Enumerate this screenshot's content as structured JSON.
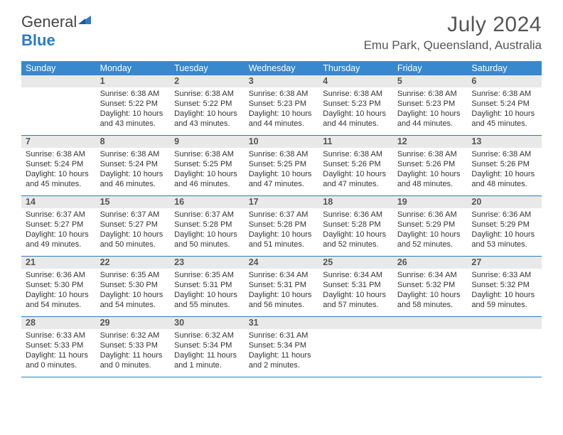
{
  "logo": {
    "text1": "General",
    "text2": "Blue"
  },
  "title": {
    "month": "July 2024",
    "location": "Emu Park, Queensland, Australia"
  },
  "colors": {
    "header_bg": "#3888ce",
    "header_text": "#ffffff",
    "daynum_bg": "#e9e9e9",
    "week_border": "#2d7bc6",
    "body_text": "#333333",
    "logo_blue": "#2d7bc6",
    "logo_gray": "#444444"
  },
  "dow": [
    "Sunday",
    "Monday",
    "Tuesday",
    "Wednesday",
    "Thursday",
    "Friday",
    "Saturday"
  ],
  "weeks": [
    [
      {
        "n": "",
        "sr": "",
        "ss": "",
        "dl": ""
      },
      {
        "n": "1",
        "sr": "Sunrise: 6:38 AM",
        "ss": "Sunset: 5:22 PM",
        "dl": "Daylight: 10 hours and 43 minutes."
      },
      {
        "n": "2",
        "sr": "Sunrise: 6:38 AM",
        "ss": "Sunset: 5:22 PM",
        "dl": "Daylight: 10 hours and 43 minutes."
      },
      {
        "n": "3",
        "sr": "Sunrise: 6:38 AM",
        "ss": "Sunset: 5:23 PM",
        "dl": "Daylight: 10 hours and 44 minutes."
      },
      {
        "n": "4",
        "sr": "Sunrise: 6:38 AM",
        "ss": "Sunset: 5:23 PM",
        "dl": "Daylight: 10 hours and 44 minutes."
      },
      {
        "n": "5",
        "sr": "Sunrise: 6:38 AM",
        "ss": "Sunset: 5:23 PM",
        "dl": "Daylight: 10 hours and 44 minutes."
      },
      {
        "n": "6",
        "sr": "Sunrise: 6:38 AM",
        "ss": "Sunset: 5:24 PM",
        "dl": "Daylight: 10 hours and 45 minutes."
      }
    ],
    [
      {
        "n": "7",
        "sr": "Sunrise: 6:38 AM",
        "ss": "Sunset: 5:24 PM",
        "dl": "Daylight: 10 hours and 45 minutes."
      },
      {
        "n": "8",
        "sr": "Sunrise: 6:38 AM",
        "ss": "Sunset: 5:24 PM",
        "dl": "Daylight: 10 hours and 46 minutes."
      },
      {
        "n": "9",
        "sr": "Sunrise: 6:38 AM",
        "ss": "Sunset: 5:25 PM",
        "dl": "Daylight: 10 hours and 46 minutes."
      },
      {
        "n": "10",
        "sr": "Sunrise: 6:38 AM",
        "ss": "Sunset: 5:25 PM",
        "dl": "Daylight: 10 hours and 47 minutes."
      },
      {
        "n": "11",
        "sr": "Sunrise: 6:38 AM",
        "ss": "Sunset: 5:26 PM",
        "dl": "Daylight: 10 hours and 47 minutes."
      },
      {
        "n": "12",
        "sr": "Sunrise: 6:38 AM",
        "ss": "Sunset: 5:26 PM",
        "dl": "Daylight: 10 hours and 48 minutes."
      },
      {
        "n": "13",
        "sr": "Sunrise: 6:38 AM",
        "ss": "Sunset: 5:26 PM",
        "dl": "Daylight: 10 hours and 48 minutes."
      }
    ],
    [
      {
        "n": "14",
        "sr": "Sunrise: 6:37 AM",
        "ss": "Sunset: 5:27 PM",
        "dl": "Daylight: 10 hours and 49 minutes."
      },
      {
        "n": "15",
        "sr": "Sunrise: 6:37 AM",
        "ss": "Sunset: 5:27 PM",
        "dl": "Daylight: 10 hours and 50 minutes."
      },
      {
        "n": "16",
        "sr": "Sunrise: 6:37 AM",
        "ss": "Sunset: 5:28 PM",
        "dl": "Daylight: 10 hours and 50 minutes."
      },
      {
        "n": "17",
        "sr": "Sunrise: 6:37 AM",
        "ss": "Sunset: 5:28 PM",
        "dl": "Daylight: 10 hours and 51 minutes."
      },
      {
        "n": "18",
        "sr": "Sunrise: 6:36 AM",
        "ss": "Sunset: 5:28 PM",
        "dl": "Daylight: 10 hours and 52 minutes."
      },
      {
        "n": "19",
        "sr": "Sunrise: 6:36 AM",
        "ss": "Sunset: 5:29 PM",
        "dl": "Daylight: 10 hours and 52 minutes."
      },
      {
        "n": "20",
        "sr": "Sunrise: 6:36 AM",
        "ss": "Sunset: 5:29 PM",
        "dl": "Daylight: 10 hours and 53 minutes."
      }
    ],
    [
      {
        "n": "21",
        "sr": "Sunrise: 6:36 AM",
        "ss": "Sunset: 5:30 PM",
        "dl": "Daylight: 10 hours and 54 minutes."
      },
      {
        "n": "22",
        "sr": "Sunrise: 6:35 AM",
        "ss": "Sunset: 5:30 PM",
        "dl": "Daylight: 10 hours and 54 minutes."
      },
      {
        "n": "23",
        "sr": "Sunrise: 6:35 AM",
        "ss": "Sunset: 5:31 PM",
        "dl": "Daylight: 10 hours and 55 minutes."
      },
      {
        "n": "24",
        "sr": "Sunrise: 6:34 AM",
        "ss": "Sunset: 5:31 PM",
        "dl": "Daylight: 10 hours and 56 minutes."
      },
      {
        "n": "25",
        "sr": "Sunrise: 6:34 AM",
        "ss": "Sunset: 5:31 PM",
        "dl": "Daylight: 10 hours and 57 minutes."
      },
      {
        "n": "26",
        "sr": "Sunrise: 6:34 AM",
        "ss": "Sunset: 5:32 PM",
        "dl": "Daylight: 10 hours and 58 minutes."
      },
      {
        "n": "27",
        "sr": "Sunrise: 6:33 AM",
        "ss": "Sunset: 5:32 PM",
        "dl": "Daylight: 10 hours and 59 minutes."
      }
    ],
    [
      {
        "n": "28",
        "sr": "Sunrise: 6:33 AM",
        "ss": "Sunset: 5:33 PM",
        "dl": "Daylight: 11 hours and 0 minutes."
      },
      {
        "n": "29",
        "sr": "Sunrise: 6:32 AM",
        "ss": "Sunset: 5:33 PM",
        "dl": "Daylight: 11 hours and 0 minutes."
      },
      {
        "n": "30",
        "sr": "Sunrise: 6:32 AM",
        "ss": "Sunset: 5:34 PM",
        "dl": "Daylight: 11 hours and 1 minute."
      },
      {
        "n": "31",
        "sr": "Sunrise: 6:31 AM",
        "ss": "Sunset: 5:34 PM",
        "dl": "Daylight: 11 hours and 2 minutes."
      },
      {
        "n": "",
        "sr": "",
        "ss": "",
        "dl": ""
      },
      {
        "n": "",
        "sr": "",
        "ss": "",
        "dl": ""
      },
      {
        "n": "",
        "sr": "",
        "ss": "",
        "dl": ""
      }
    ]
  ]
}
